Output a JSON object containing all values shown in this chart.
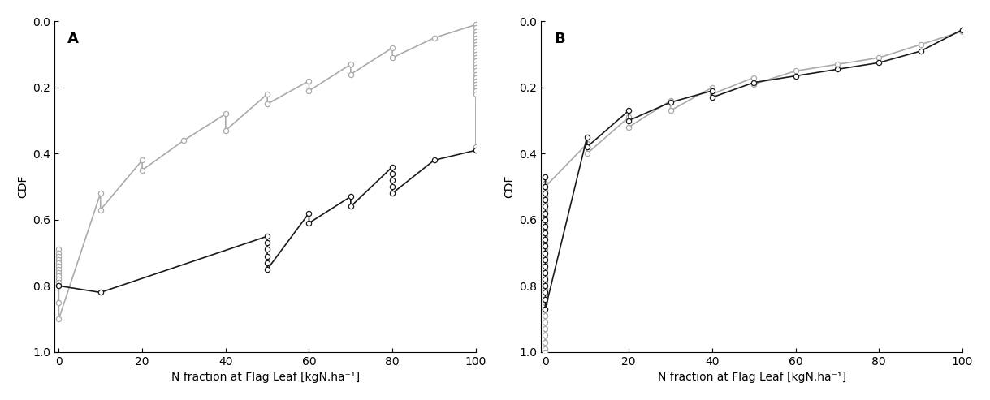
{
  "gray_color": "#aaaaaa",
  "black_color": "#1a1a1a",
  "xlabel": "N fraction at Flag Leaf [kgN.ha⁻¹]",
  "ylabel": "CDF",
  "yticks": [
    0.0,
    0.2,
    0.4,
    0.6,
    0.8,
    1.0
  ],
  "xticks": [
    0,
    20,
    40,
    60,
    80,
    100
  ],
  "xlim": [
    -1,
    100
  ],
  "marker_size": 4.5,
  "linewidth": 1.2,
  "panel_A_gray_x": [
    0,
    0,
    0,
    0,
    0,
    0,
    0,
    0,
    0,
    0,
    0,
    0,
    0,
    0,
    10,
    10,
    20,
    20,
    30,
    40,
    40,
    50,
    50,
    60,
    60,
    70,
    70,
    80,
    80,
    90,
    100,
    100,
    100,
    100,
    100,
    100,
    100,
    100,
    100,
    100,
    100,
    100,
    100,
    100,
    100,
    100,
    100,
    100,
    100,
    100,
    100,
    100,
    100
  ],
  "panel_A_gray_y": [
    0.69,
    0.7,
    0.71,
    0.72,
    0.73,
    0.74,
    0.75,
    0.76,
    0.77,
    0.78,
    0.79,
    0.8,
    0.85,
    0.9,
    0.52,
    0.57,
    0.42,
    0.45,
    0.36,
    0.28,
    0.33,
    0.22,
    0.25,
    0.18,
    0.21,
    0.13,
    0.16,
    0.08,
    0.11,
    0.05,
    0.01,
    0.02,
    0.03,
    0.04,
    0.05,
    0.06,
    0.07,
    0.08,
    0.09,
    0.1,
    0.11,
    0.12,
    0.13,
    0.14,
    0.15,
    0.16,
    0.17,
    0.18,
    0.19,
    0.2,
    0.21,
    0.22,
    0.38
  ],
  "panel_A_black_x": [
    0,
    10,
    50,
    50,
    50,
    50,
    50,
    50,
    60,
    60,
    70,
    70,
    80,
    80,
    80,
    80,
    80,
    90,
    100
  ],
  "panel_A_black_y": [
    0.8,
    0.82,
    0.65,
    0.67,
    0.69,
    0.71,
    0.73,
    0.75,
    0.58,
    0.61,
    0.53,
    0.56,
    0.44,
    0.46,
    0.48,
    0.5,
    0.52,
    0.42,
    0.39
  ],
  "panel_B_gray_x": [
    0,
    0,
    0,
    0,
    0,
    0,
    0,
    0,
    0,
    0,
    0,
    0,
    0,
    0,
    0,
    0,
    0,
    0,
    0,
    0,
    0,
    0,
    0,
    0,
    0,
    0,
    0,
    0,
    0,
    0,
    10,
    10,
    20,
    20,
    30,
    30,
    40,
    40,
    50,
    50,
    60,
    70,
    80,
    90,
    100
  ],
  "panel_B_gray_y": [
    0.47,
    0.49,
    0.51,
    0.53,
    0.55,
    0.57,
    0.59,
    0.61,
    0.63,
    0.65,
    0.67,
    0.69,
    0.71,
    0.73,
    0.75,
    0.77,
    0.79,
    0.81,
    0.83,
    0.85,
    0.87,
    0.89,
    0.91,
    0.93,
    0.95,
    0.97,
    0.99,
    1.0,
    0.54,
    0.5,
    0.37,
    0.4,
    0.29,
    0.32,
    0.24,
    0.27,
    0.2,
    0.22,
    0.17,
    0.19,
    0.15,
    0.13,
    0.11,
    0.07,
    0.03
  ],
  "panel_B_black_x": [
    0,
    0,
    0,
    0,
    0,
    0,
    0,
    0,
    0,
    0,
    0,
    0,
    0,
    0,
    0,
    0,
    0,
    0,
    0,
    0,
    10,
    10,
    20,
    20,
    30,
    40,
    40,
    50,
    60,
    70,
    80,
    90,
    100
  ],
  "panel_B_black_y": [
    0.47,
    0.5,
    0.52,
    0.54,
    0.56,
    0.58,
    0.6,
    0.62,
    0.64,
    0.66,
    0.68,
    0.7,
    0.72,
    0.74,
    0.76,
    0.78,
    0.8,
    0.82,
    0.84,
    0.87,
    0.35,
    0.38,
    0.27,
    0.3,
    0.245,
    0.21,
    0.23,
    0.185,
    0.165,
    0.145,
    0.125,
    0.09,
    0.025
  ]
}
